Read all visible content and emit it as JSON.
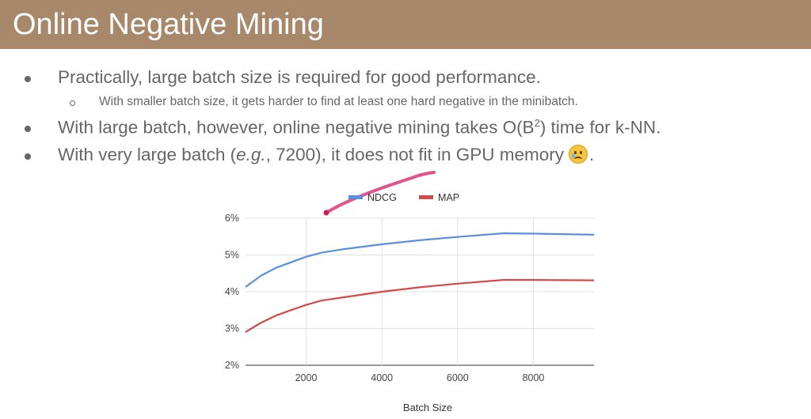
{
  "slide": {
    "title": "Online Negative Mining",
    "bullets": [
      {
        "text": "Practically, large batch size is required for good performance."
      },
      {
        "text": "With smaller batch size, it gets harder to find at least one hard negative in the minibatch."
      },
      {
        "pre": "With large batch, however, online negative mining takes O(B",
        "sup": "2",
        "post": ") time for k-NN."
      },
      {
        "pre": "With very large batch (",
        "em": "e.g.",
        "post": ", 7200), it does not fit in GPU memory",
        "end": "."
      }
    ],
    "emoji_icon": "sad-face-emoji"
  },
  "chart_data": {
    "type": "line",
    "xlabel": "Batch Size",
    "ylabel": "",
    "xlim": [
      400,
      9600
    ],
    "ylim": [
      2,
      6
    ],
    "x_ticks": [
      "2000",
      "4000",
      "6000",
      "8000"
    ],
    "y_ticks": [
      "2%",
      "3%",
      "4%",
      "5%",
      "6%"
    ],
    "grid": "vertical",
    "legend_position": "top",
    "series": [
      {
        "name": "NDCG",
        "color": "#5b8fdc",
        "x": [
          400,
          800,
          1200,
          1600,
          2000,
          2400,
          3000,
          4000,
          5000,
          6000,
          7200,
          8000,
          9600
        ],
        "y": [
          4.13,
          4.43,
          4.65,
          4.8,
          4.95,
          5.06,
          5.16,
          5.29,
          5.4,
          5.49,
          5.59,
          5.58,
          5.55
        ]
      },
      {
        "name": "MAP",
        "color": "#d24a4a",
        "x": [
          400,
          800,
          1200,
          1600,
          2000,
          2400,
          3000,
          4000,
          5000,
          6000,
          7200,
          8000,
          9600
        ],
        "y": [
          2.9,
          3.15,
          3.35,
          3.5,
          3.64,
          3.76,
          3.85,
          4.0,
          4.12,
          4.22,
          4.32,
          4.32,
          4.31
        ]
      }
    ]
  }
}
